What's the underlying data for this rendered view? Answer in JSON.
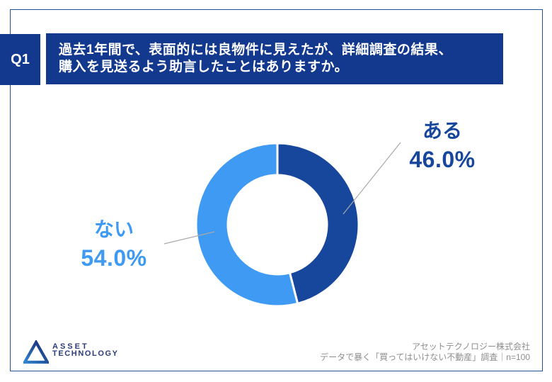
{
  "header": {
    "badge": "Q1",
    "line1": "過去1年間で、表面的には良物件に見えたが、詳細調査の結果、",
    "line2": "購入を見送るよう助言したことはありますか。",
    "bar_color": "#13398e",
    "text_color": "#ffffff"
  },
  "chart_data": {
    "type": "pie",
    "subtype": "donut",
    "title": "過去1年間で、表面的には良物件に見えたが、詳細調査の結果、購入を見送るよう助言したことはありますか。",
    "categories": [
      "ある",
      "ない"
    ],
    "values": [
      46.0,
      54.0
    ],
    "unit": "%",
    "segments": [
      {
        "label": "ある",
        "value": 46.0,
        "percent_label": "46.0%",
        "color": "#17479d"
      },
      {
        "label": "ない",
        "value": 54.0,
        "percent_label": "54.0%",
        "color": "#3e9af3"
      }
    ],
    "start_angle_deg": 0,
    "direction": "clockwise",
    "inner_radius_ratio": 0.61,
    "segment_gap_color": "#ffffff",
    "leader_line_color": "#a9a9a9",
    "legend_position": "none"
  },
  "footer": {
    "logo": {
      "line1": "ASSET",
      "line2": "TECHNOLOGY"
    },
    "company": "アセットテクノロジー株式会社",
    "survey": "データで暴く「買ってはいけない不動産」調査｜n=100"
  },
  "colors": {
    "frame_border": "#26519f",
    "credit_text": "#8d8d8d",
    "background": "#ffffff"
  }
}
